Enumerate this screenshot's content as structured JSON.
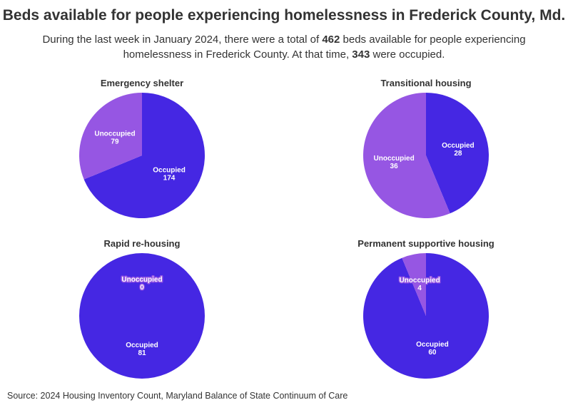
{
  "title": "Beds available for people experiencing homelessness in Frederick County, Md.",
  "subtitle": [
    "During the last week in January 2024, there were a total of ",
    "462",
    " beds available for people experiencing homelessness in Frederick County. At that time, ",
    "343",
    " were occupied."
  ],
  "source": "Source: 2024 Housing Inventory Count, Maryland Balance of State Continuum of Care",
  "chart_data": [
    {
      "type": "pie",
      "title": "Emergency shelter",
      "categories": [
        "Occupied",
        "Unoccupied"
      ],
      "values": [
        174,
        79
      ],
      "colors": [
        "#4527e3",
        "#9656e3"
      ]
    },
    {
      "type": "pie",
      "title": "Transitional housing",
      "categories": [
        "Occupied",
        "Unoccupied"
      ],
      "values": [
        28,
        36
      ],
      "colors": [
        "#4527e3",
        "#9656e3"
      ]
    },
    {
      "type": "pie",
      "title": "Rapid re-housing",
      "categories": [
        "Occupied",
        "Unoccupied"
      ],
      "values": [
        81,
        0
      ],
      "colors": [
        "#4527e3",
        "#9656e3"
      ]
    },
    {
      "type": "pie",
      "title": "Permanent supportive housing",
      "categories": [
        "Occupied",
        "Unoccupied"
      ],
      "values": [
        60,
        4
      ],
      "colors": [
        "#4527e3",
        "#9656e3"
      ]
    }
  ]
}
